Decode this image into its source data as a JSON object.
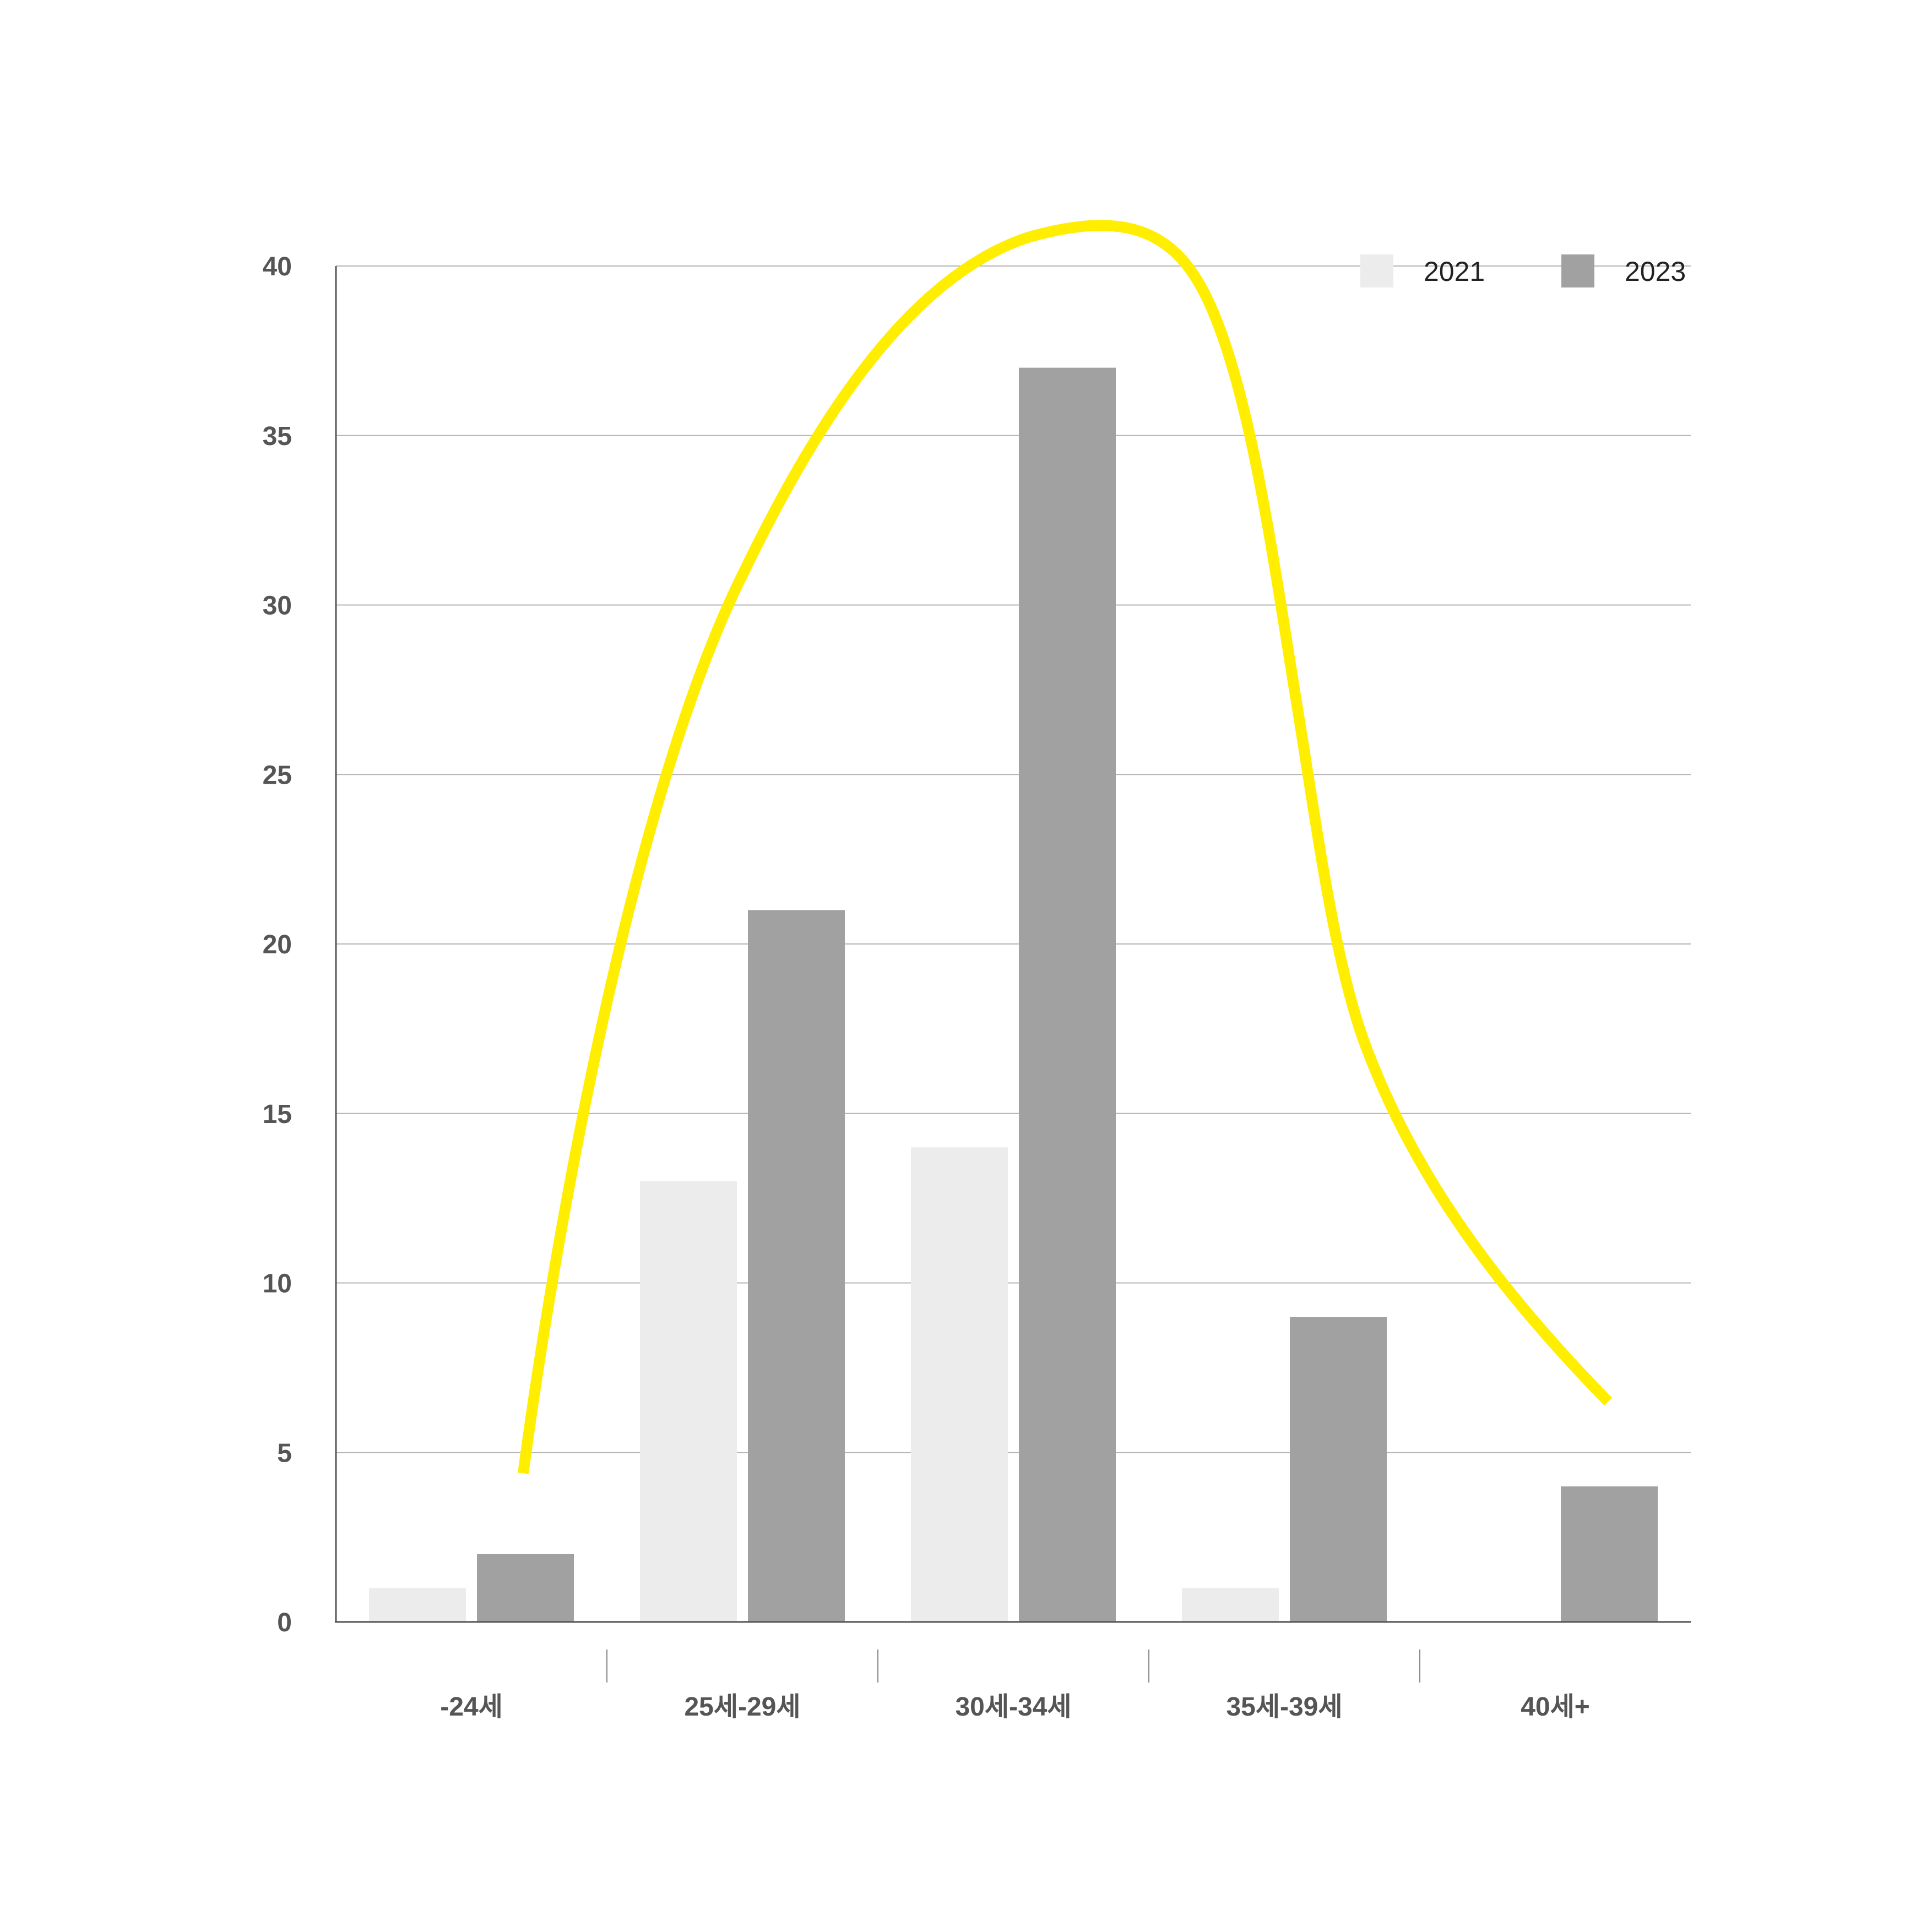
{
  "chart_data": {
    "type": "bar",
    "categories": [
      "-24세",
      "25세-29세",
      "30세-34세",
      "35세-39세",
      "40세+"
    ],
    "series": [
      {
        "name": "2021",
        "values": [
          1,
          13,
          14,
          1,
          0
        ],
        "color": "#ebeceb"
      },
      {
        "name": "2023",
        "values": [
          2,
          21,
          37,
          9,
          4
        ],
        "color": "#a0a1a0"
      }
    ],
    "ylim": [
      0,
      40
    ],
    "yticks": [
      0,
      5,
      10,
      15,
      20,
      25,
      30,
      35,
      40
    ],
    "grid": true,
    "legend_position": "top-right",
    "annotation": {
      "type": "hand-drawn trend curve",
      "color": "#ffee00"
    }
  }
}
